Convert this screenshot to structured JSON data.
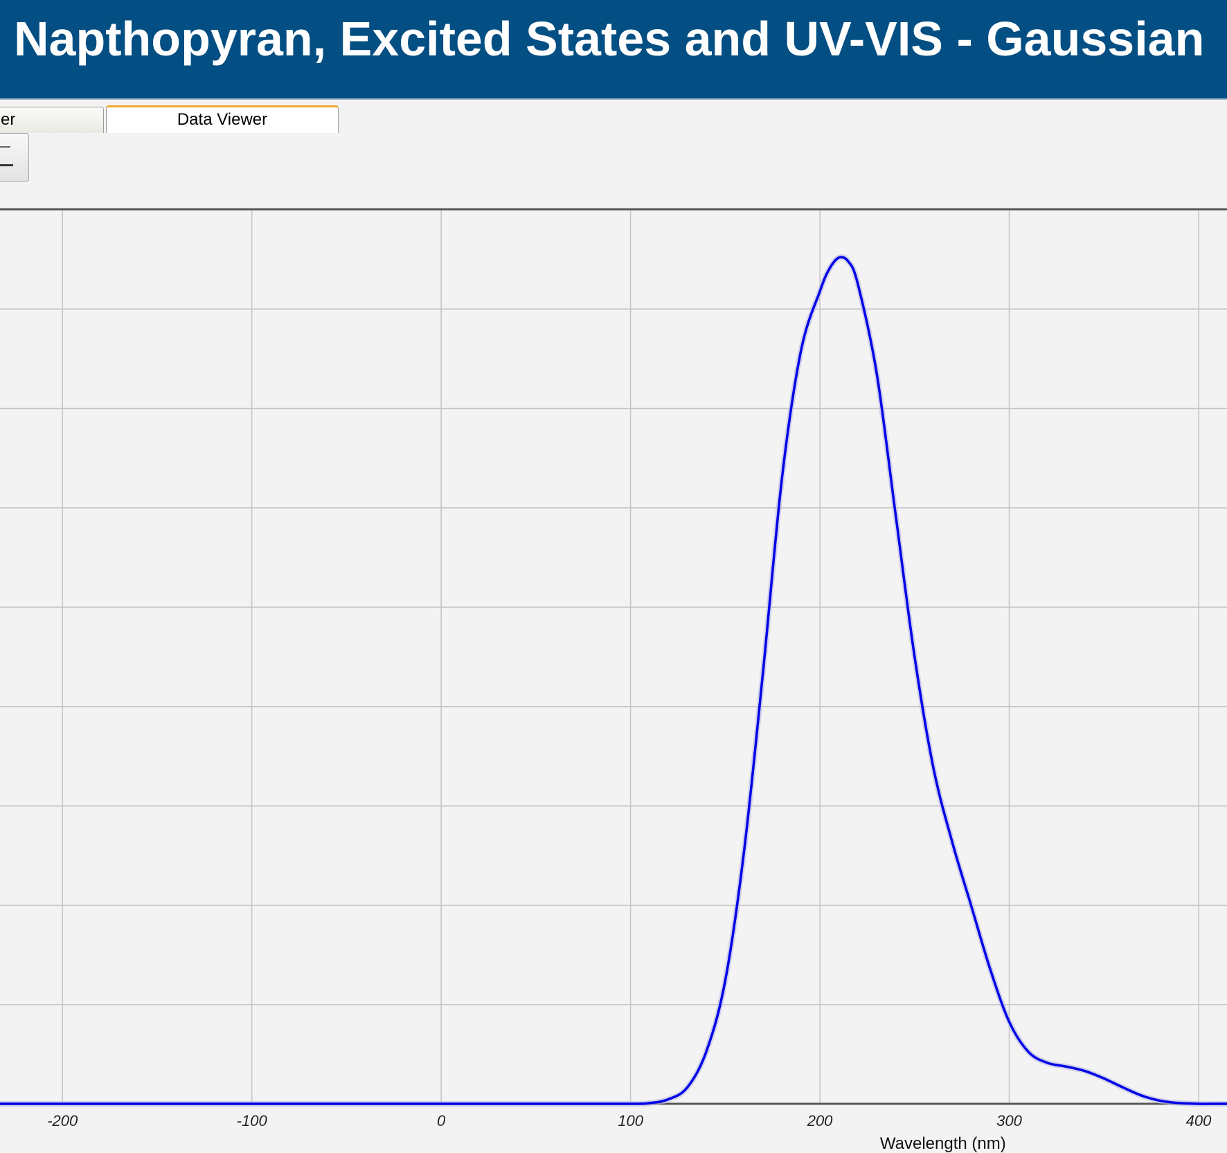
{
  "window": {
    "title": "Napthopyran, Excited States and UV-VIS - Gaussian"
  },
  "tabs": [
    {
      "label": "er",
      "active": false
    },
    {
      "label": "Data Viewer",
      "active": true
    }
  ],
  "toolbar": {
    "menu_icon": "menu-lines-icon"
  },
  "colors": {
    "title_bar": "#034e82",
    "title_text": "#ffffff",
    "active_tab_accent": "#f0a830",
    "curve": "#0000e6",
    "plot_background": "#f3f3f3",
    "grid": "#c4c4c4"
  },
  "chart_data": {
    "type": "line",
    "xlabel": "Wavelength (nm)",
    "ylabel": "",
    "xlim": [
      -233,
      415
    ],
    "ylim": [
      0,
      1.2
    ],
    "x_ticks": [
      -200,
      -100,
      0,
      100,
      200,
      300,
      400
    ],
    "y_tick_labels_visible": false,
    "grid": true,
    "series": [
      {
        "color": "#0000e6",
        "x": [
          -233,
          -200,
          -150,
          -100,
          -50,
          0,
          50,
          100,
          110,
          120,
          130,
          140,
          150,
          160,
          170,
          180,
          190,
          200,
          205,
          210,
          215,
          220,
          230,
          240,
          250,
          260,
          270,
          280,
          290,
          300,
          310,
          320,
          330,
          340,
          350,
          360,
          370,
          380,
          390,
          400,
          410,
          415
        ],
        "y": [
          0,
          0,
          0,
          0,
          0,
          0,
          0,
          0,
          0.001,
          0.006,
          0.022,
          0.07,
          0.165,
          0.34,
          0.58,
          0.84,
          1.01,
          1.09,
          1.12,
          1.135,
          1.13,
          1.1,
          0.98,
          0.79,
          0.6,
          0.45,
          0.35,
          0.265,
          0.18,
          0.11,
          0.07,
          0.055,
          0.05,
          0.044,
          0.034,
          0.022,
          0.011,
          0.004,
          0.001,
          0.0,
          0,
          0
        ]
      }
    ]
  }
}
